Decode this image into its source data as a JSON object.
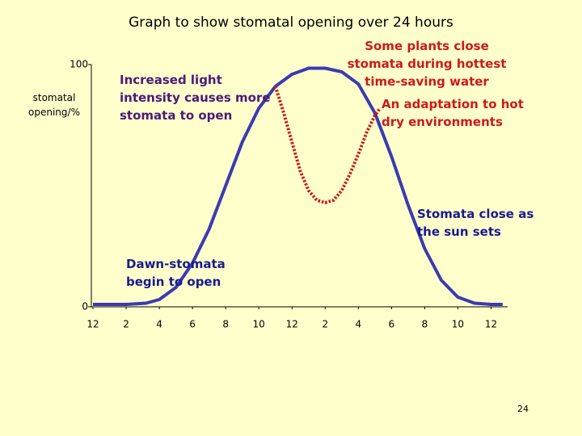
{
  "chart_data": {
    "type": "line",
    "title": "Graph to show stomatal opening over 24 hours",
    "y_label": "stomatal opening/%",
    "xlim": [
      0,
      25
    ],
    "ylim": [
      0,
      100
    ],
    "yticks": [
      0,
      100
    ],
    "xticks": [
      {
        "value": 0,
        "label": "12"
      },
      {
        "value": 2,
        "label": "2"
      },
      {
        "value": 4,
        "label": "4"
      },
      {
        "value": 6,
        "label": "6"
      },
      {
        "value": 8,
        "label": "8"
      },
      {
        "value": 10,
        "label": "10"
      },
      {
        "value": 12,
        "label": "12"
      },
      {
        "value": 14,
        "label": "2"
      },
      {
        "value": 16,
        "label": "4"
      },
      {
        "value": 18,
        "label": "6"
      },
      {
        "value": 20,
        "label": "8"
      },
      {
        "value": 22,
        "label": "10"
      },
      {
        "value": 24,
        "label": "12"
      }
    ],
    "series": [
      {
        "color": "#3b3bb0",
        "dash": false,
        "x": [
          0,
          2,
          3.2,
          4,
          5,
          6,
          7,
          8,
          9,
          10,
          11,
          12,
          13,
          14,
          15,
          16,
          17,
          18,
          19,
          20,
          21,
          22,
          23,
          24,
          24.7
        ],
        "values": [
          1,
          1,
          1.5,
          3,
          8,
          18,
          32,
          50,
          68,
          82,
          91,
          96,
          98.5,
          98.5,
          97,
          92,
          80,
          62,
          42,
          24,
          11,
          4,
          1.5,
          1,
          1
        ]
      },
      {
        "color": "#cc1a1a",
        "dash": true,
        "x": [
          11,
          11.5,
          12,
          12.5,
          13,
          13.5,
          14,
          14.5,
          15,
          15.5,
          16,
          16.5,
          17,
          17.3
        ],
        "values": [
          91,
          80,
          68,
          56,
          48,
          44,
          43,
          44,
          48,
          55,
          63,
          72,
          79,
          82
        ]
      }
    ],
    "annotations": [
      {
        "text": "Increased light intensity causes more stomata to open",
        "color": "#4b1a7a"
      },
      {
        "text": "Some plants close stomata during hottest time-saving water",
        "color": "#cc1a1a"
      },
      {
        "text": "An adaptation to hot dry environments",
        "color": "#cc1a1a"
      },
      {
        "text": "Stomata close as the sun sets",
        "color": "#1a1a90"
      },
      {
        "text": "Dawn-stomata begin to open",
        "color": "#1a1a90"
      }
    ]
  },
  "page_number": "24"
}
